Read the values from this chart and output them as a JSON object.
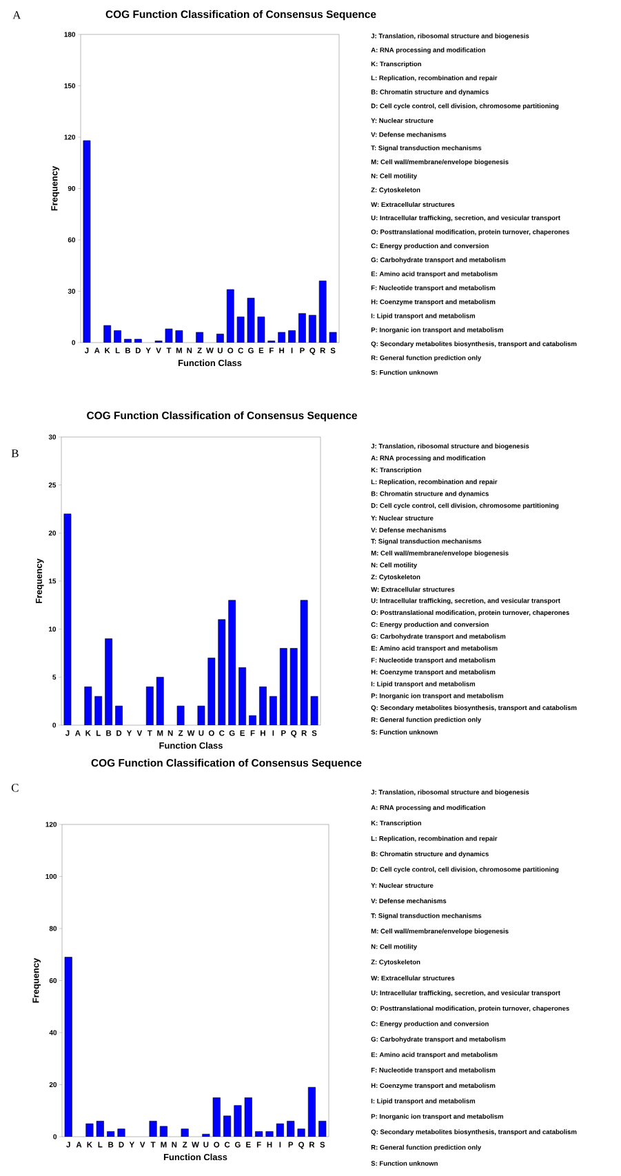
{
  "chart_data": [
    {
      "type": "bar",
      "title": "COG Function Classification of Consensus Sequence",
      "xlabel": "Function Class",
      "ylabel": "Frequency",
      "color": "#0000ff",
      "categories": [
        "J",
        "A",
        "K",
        "L",
        "B",
        "D",
        "Y",
        "V",
        "T",
        "M",
        "N",
        "Z",
        "W",
        "U",
        "O",
        "C",
        "G",
        "E",
        "F",
        "H",
        "I",
        "P",
        "Q",
        "R",
        "S"
      ],
      "values": [
        118,
        0,
        10,
        7,
        2,
        2,
        0,
        1,
        8,
        7,
        0,
        6,
        0,
        5,
        31,
        15,
        26,
        15,
        1,
        6,
        7,
        17,
        16,
        36,
        6
      ],
      "ylim": [
        0,
        180
      ],
      "yticks": [
        0,
        30,
        60,
        90,
        120,
        150,
        180
      ],
      "annotations": [
        "A",
        "J: Translation, ribosomal structure and biogenesis",
        "A: RNA processing and modification",
        "K: Transcription",
        "L: Replication, recombination and repair",
        "B: Chromatin structure and dynamics",
        "D: Cell cycle control, cell division, chromosome partitioning",
        "Y: Nuclear structure",
        "V: Defense mechanisms",
        "T: Signal transduction mechanisms",
        "M: Cell wall/membrane/envelope biogenesis",
        "N: Cell motility",
        "Z: Cytoskeleton",
        "W: Extracellular structures",
        "U: Intracellular trafficking, secretion, and vesicular transport",
        "O: Posttranslational modification, protein turnover, chaperones",
        "C: Energy production and conversion",
        "G: Carbohydrate transport and metabolism",
        "E: Amino acid transport and metabolism",
        "F: Nucleotide transport and metabolism",
        "H: Coenzyme transport and metabolism",
        "I: Lipid transport and metabolism",
        "P: Inorganic ion transport and metabolism",
        "Q: Secondary metabolites biosynthesis, transport and catabolism",
        "R: General function prediction only",
        "S: Function unknown"
      ]
    },
    {
      "type": "bar",
      "title": "COG Function Classification of Consensus Sequence",
      "xlabel": "Function Class",
      "ylabel": "Frequency",
      "color": "#0000ff",
      "categories": [
        "J",
        "A",
        "K",
        "L",
        "B",
        "D",
        "Y",
        "V",
        "T",
        "M",
        "N",
        "Z",
        "W",
        "U",
        "O",
        "C",
        "G",
        "E",
        "F",
        "H",
        "I",
        "P",
        "Q",
        "R",
        "S"
      ],
      "values": [
        22,
        0,
        4,
        3,
        9,
        2,
        0,
        0,
        4,
        5,
        0,
        2,
        0,
        2,
        7,
        11,
        13,
        6,
        1,
        4,
        3,
        8,
        8,
        13,
        3
      ],
      "ylim": [
        0,
        30
      ],
      "yticks": [
        0,
        5,
        10,
        15,
        20,
        25,
        30
      ],
      "annotations": [
        "B",
        "J: Translation, ribosomal structure and biogenesis",
        "A: RNA processing and modification",
        "K: Transcription",
        "L: Replication, recombination and repair",
        "B: Chromatin structure and dynamics",
        "D: Cell cycle control, cell division, chromosome partitioning",
        "Y: Nuclear structure",
        "V: Defense mechanisms",
        "T: Signal transduction mechanisms",
        "M: Cell wall/membrane/envelope biogenesis",
        "N: Cell motility",
        "Z: Cytoskeleton",
        "W: Extracellular structures",
        "U: Intracellular trafficking, secretion, and vesicular transport",
        "O: Posttranslational modification, protein turnover, chaperones",
        "C: Energy production and conversion",
        "G: Carbohydrate transport and metabolism",
        "E: Amino acid transport and metabolism",
        "F: Nucleotide transport and metabolism",
        "H: Coenzyme transport and metabolism",
        "I: Lipid transport and metabolism",
        "P: Inorganic ion transport and metabolism",
        "Q: Secondary metabolites biosynthesis, transport and catabolism",
        "R: General function prediction only",
        "S: Function unknown"
      ]
    },
    {
      "type": "bar",
      "title": "COG Function Classification of Consensus Sequence",
      "xlabel": "Function Class",
      "ylabel": "Frequency",
      "color": "#0000ff",
      "categories": [
        "J",
        "A",
        "K",
        "L",
        "B",
        "D",
        "Y",
        "V",
        "T",
        "M",
        "N",
        "Z",
        "W",
        "U",
        "O",
        "C",
        "G",
        "E",
        "F",
        "H",
        "I",
        "P",
        "Q",
        "R",
        "S"
      ],
      "values": [
        69,
        0,
        5,
        6,
        2,
        3,
        0,
        0,
        6,
        4,
        0,
        3,
        0,
        1,
        15,
        8,
        12,
        15,
        2,
        2,
        5,
        6,
        3,
        19,
        6
      ],
      "ylim": [
        0,
        120
      ],
      "yticks": [
        0,
        20,
        40,
        60,
        80,
        100,
        120
      ],
      "annotations": [
        "C",
        "J: Translation, ribosomal structure and biogenesis",
        "A: RNA processing and modification",
        "K: Transcription",
        "L: Replication, recombination and repair",
        "B: Chromatin structure and dynamics",
        "D: Cell cycle control, cell division, chromosome partitioning",
        "Y: Nuclear structure",
        "V: Defense mechanisms",
        "T: Signal transduction mechanisms",
        "M: Cell wall/membrane/envelope biogenesis",
        "N: Cell motility",
        "Z: Cytoskeleton",
        "W: Extracellular structures",
        "U: Intracellular trafficking, secretion, and vesicular transport",
        "O: Posttranslational modification, protein turnover, chaperones",
        "C: Energy production and conversion",
        "G: Carbohydrate transport and metabolism",
        "E: Amino acid transport and metabolism",
        "F: Nucleotide transport and metabolism",
        "H: Coenzyme transport and metabolism",
        "I: Lipid transport and metabolism",
        "P: Inorganic ion transport and metabolism",
        "Q: Secondary metabolites biosynthesis, transport and catabolism",
        "R: General function prediction only",
        "S: Function unknown"
      ]
    }
  ]
}
